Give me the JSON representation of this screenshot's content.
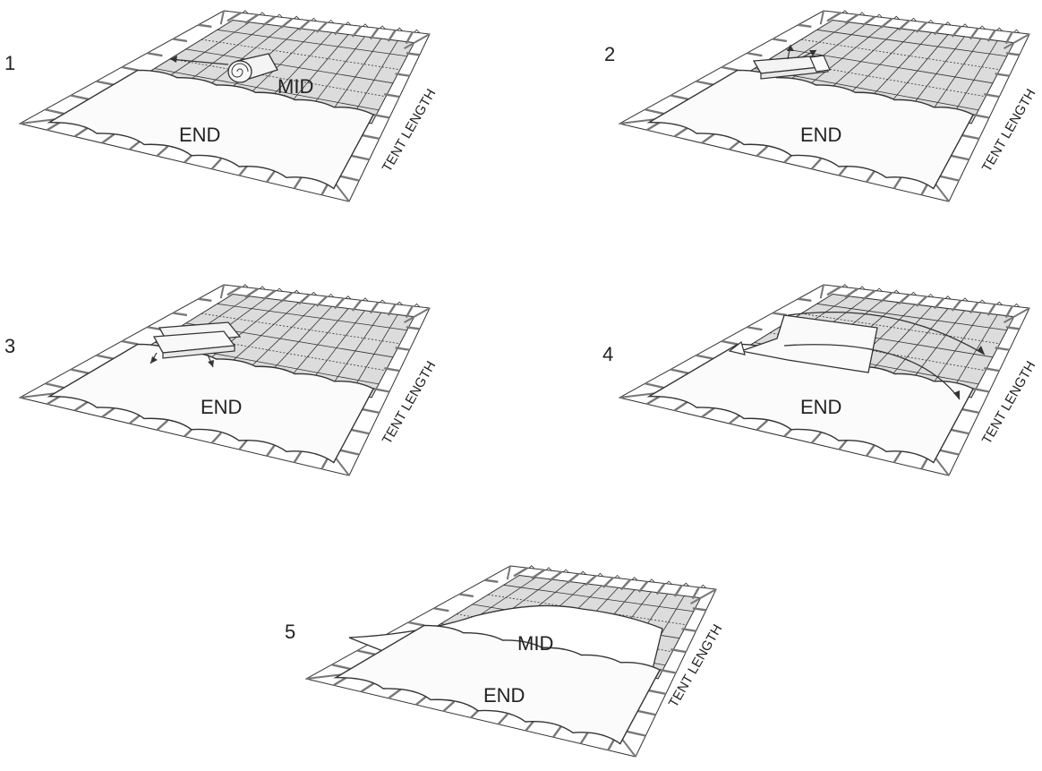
{
  "title": "",
  "colors": {
    "grid_fill": "#dcdcdc",
    "fabric_fill": "#fbfbfb",
    "line": "#333333",
    "stake": "#777777",
    "background": "#ffffff"
  },
  "panels": [
    {
      "step": "1",
      "end_label": "END",
      "mid_label": "MID",
      "side_label": "TENT LENGTH",
      "detail": "roll-icon"
    },
    {
      "step": "2",
      "end_label": "END",
      "side_label": "TENT LENGTH",
      "detail": "folded-bundle-icon"
    },
    {
      "step": "3",
      "end_label": "END",
      "side_label": "TENT LENGTH",
      "detail": "folded-bundle-icon"
    },
    {
      "step": "4",
      "end_label": "END",
      "side_label": "TENT LENGTH",
      "detail": "unfolding-fabric-icon"
    },
    {
      "step": "5",
      "end_label": "END",
      "mid_label": "MID",
      "side_label": "TENT LENGTH",
      "detail": "spread-mid-fabric"
    }
  ]
}
